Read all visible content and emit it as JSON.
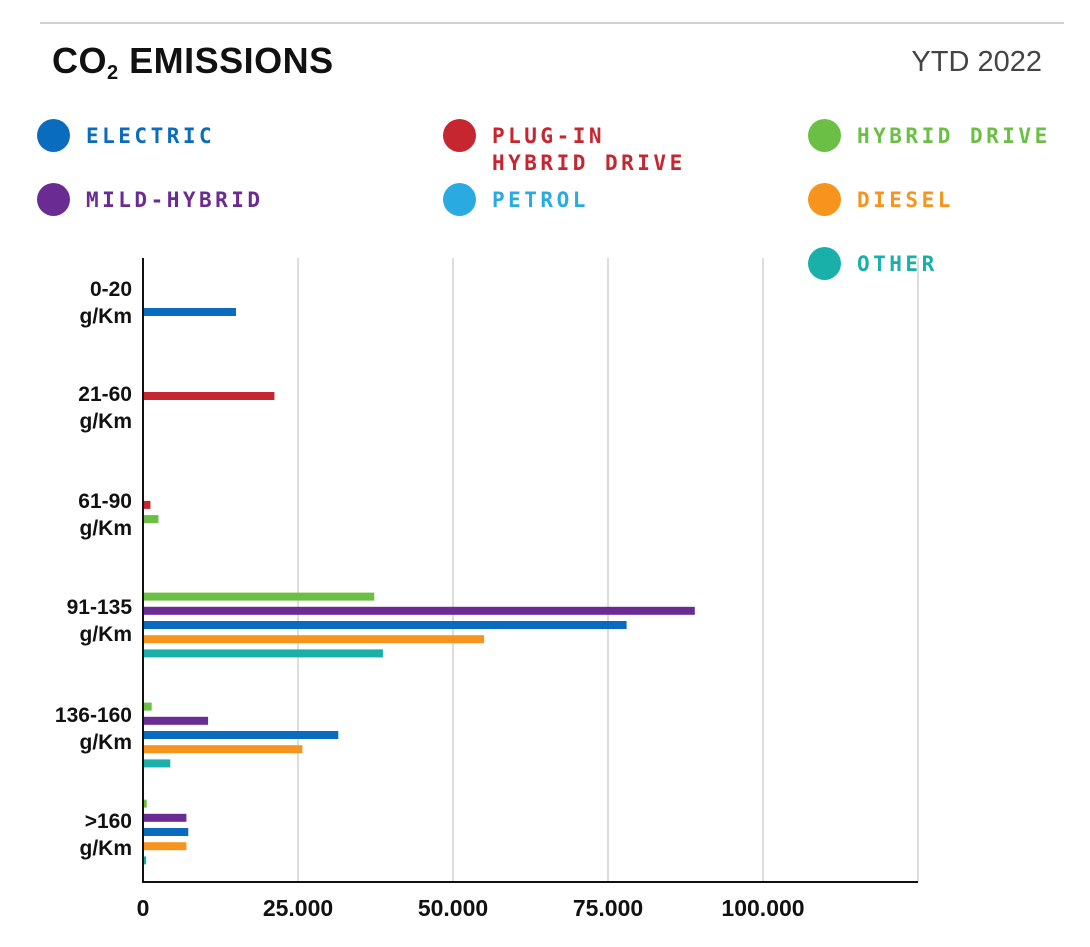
{
  "header": {
    "title_main": "CO",
    "title_sub": "2",
    "title_rest": " EMISSIONS",
    "period": "YTD 2022"
  },
  "legend": [
    {
      "label": "ELECTRIC",
      "color": "#0a6cbf",
      "icon": "legend-dot"
    },
    {
      "label": "PLUG-IN\nHYBRID DRIVE",
      "color": "#c62630",
      "icon": "legend-dot"
    },
    {
      "label": "HYBRID DRIVE",
      "color": "#6cbf45",
      "icon": "legend-dot"
    },
    {
      "label": "MILD-HYBRID",
      "color": "#6a2c93",
      "icon": "legend-dot"
    },
    {
      "label": "PETROL",
      "color": "#29abe2",
      "icon": "legend-dot"
    },
    {
      "label": "DIESEL",
      "color": "#f7941d",
      "icon": "legend-dot"
    },
    {
      "label": "OTHER",
      "color": "#19b0a9",
      "icon": "legend-dot"
    }
  ],
  "chart_data": {
    "type": "bar",
    "orientation": "horizontal",
    "title": "CO2 EMISSIONS",
    "subtitle": "YTD 2022",
    "categories": [
      "0-20\ng/Km",
      "21-60\ng/Km",
      "61-90\ng/Km",
      "91-135\ng/Km",
      "136-160\ng/Km",
      ">160\ng/Km"
    ],
    "series": [
      {
        "name": "ELECTRIC",
        "color": "#0a6cbf",
        "values": [
          15000,
          null,
          null,
          78000,
          31500,
          7300
        ]
      },
      {
        "name": "PLUG-IN HYBRID DRIVE",
        "color": "#c62630",
        "values": [
          null,
          21200,
          1200,
          null,
          null,
          null
        ]
      },
      {
        "name": "HYBRID DRIVE",
        "color": "#6cbf45",
        "values": [
          null,
          null,
          2500,
          37300,
          1400,
          600
        ]
      },
      {
        "name": "MILD-HYBRID",
        "color": "#6a2c93",
        "values": [
          null,
          null,
          null,
          89000,
          10500,
          7000
        ]
      },
      {
        "name": "PETROL",
        "color": "#29abe2",
        "values": [
          null,
          null,
          null,
          null,
          null,
          null
        ]
      },
      {
        "name": "DIESEL",
        "color": "#f7941d",
        "values": [
          null,
          null,
          null,
          55000,
          25700,
          7000
        ]
      },
      {
        "name": "OTHER",
        "color": "#19b0a9",
        "values": [
          null,
          null,
          null,
          38700,
          4400,
          500
        ]
      }
    ],
    "bar_order_per_category": [
      [
        "ELECTRIC"
      ],
      [
        "PLUG-IN HYBRID DRIVE"
      ],
      [
        "PLUG-IN HYBRID DRIVE",
        "HYBRID DRIVE"
      ],
      [
        "HYBRID DRIVE",
        "MILD-HYBRID",
        "ELECTRIC",
        "DIESEL",
        "OTHER"
      ],
      [
        "HYBRID DRIVE",
        "MILD-HYBRID",
        "ELECTRIC",
        "DIESEL",
        "OTHER"
      ],
      [
        "HYBRID DRIVE",
        "MILD-HYBRID",
        "ELECTRIC",
        "DIESEL",
        "OTHER"
      ]
    ],
    "xlim": [
      0,
      125000
    ],
    "xticks": [
      0,
      25000,
      50000,
      75000,
      100000
    ],
    "xtick_labels": [
      "0",
      "25.000",
      "50.000",
      "75.000",
      "100.000"
    ],
    "grid": true,
    "legend_position": "top"
  }
}
